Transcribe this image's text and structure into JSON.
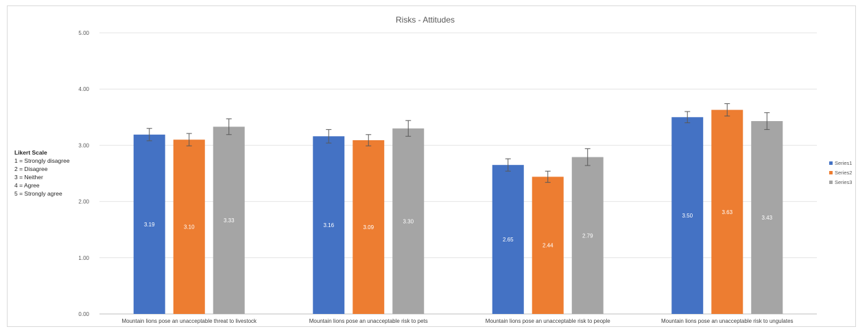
{
  "chart_data": {
    "type": "bar",
    "title": "Risks - Attitudes",
    "xlabel": "",
    "ylabel": "",
    "ylim": [
      0,
      5
    ],
    "yticks": [
      "0.00",
      "1.00",
      "2.00",
      "3.00",
      "4.00",
      "5.00"
    ],
    "grid": true,
    "legend_position": "right",
    "categories": [
      "Mountain lions pose an unacceptable threat to livestock",
      "Mountain lions pose an unacceptable risk to pets",
      "Mountain lions pose an unacceptable risk to people",
      "Mountain lions pose an unacceptable risk to ungulates"
    ],
    "series": [
      {
        "name": "Series1",
        "color": "#4472C4",
        "values": [
          3.19,
          3.16,
          2.65,
          3.5
        ],
        "labels": [
          "3.19",
          "3.16",
          "2.65",
          "3.50"
        ],
        "errors": [
          0.11,
          0.12,
          0.11,
          0.1
        ]
      },
      {
        "name": "Series2",
        "color": "#ED7D31",
        "values": [
          3.1,
          3.09,
          2.44,
          3.63
        ],
        "labels": [
          "3.10",
          "3.09",
          "2.44",
          "3.63"
        ],
        "errors": [
          0.11,
          0.1,
          0.1,
          0.11
        ]
      },
      {
        "name": "Series3",
        "color": "#A5A5A5",
        "values": [
          3.33,
          3.3,
          2.79,
          3.43
        ],
        "labels": [
          "3.33",
          "3.30",
          "2.79",
          "3.43"
        ],
        "errors": [
          0.14,
          0.14,
          0.15,
          0.15
        ]
      }
    ]
  },
  "scale_note": {
    "heading": "Likert Scale",
    "lines": [
      "1 = Strongly disagree",
      "2 = Disagree",
      "3 = Neither",
      "4 = Agree",
      "5 = Strongly agree"
    ]
  }
}
